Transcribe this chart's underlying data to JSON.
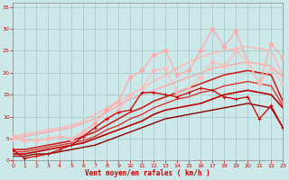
{
  "xlabel": "Vent moyen/en rafales ( km/h )",
  "bg_color": "#cce8e8",
  "grid_color": "#aacccc",
  "xlim": [
    0,
    23
  ],
  "ylim": [
    0,
    36
  ],
  "yticks": [
    0,
    5,
    10,
    15,
    20,
    25,
    30,
    35
  ],
  "xticks": [
    0,
    1,
    2,
    3,
    4,
    5,
    6,
    7,
    8,
    9,
    10,
    11,
    12,
    13,
    14,
    15,
    16,
    17,
    18,
    19,
    20,
    21,
    22,
    23
  ],
  "lines": [
    {
      "x": [
        0,
        1,
        2,
        3,
        4,
        5,
        6,
        7,
        8,
        9,
        10,
        11,
        12,
        13,
        14,
        15,
        16,
        17,
        18,
        19,
        20,
        21,
        22,
        23
      ],
      "y": [
        5.5,
        6.0,
        6.5,
        7.0,
        7.5,
        8.0,
        9.0,
        10.5,
        12.0,
        13.5,
        15.0,
        16.5,
        18.0,
        19.5,
        21.0,
        22.5,
        23.5,
        24.5,
        25.0,
        25.5,
        26.0,
        25.5,
        25.0,
        19.5
      ],
      "color": "#ffbbbb",
      "lw": 1.2,
      "marker": null,
      "ms": 0,
      "zorder": 1
    },
    {
      "x": [
        0,
        1,
        2,
        3,
        4,
        5,
        6,
        7,
        8,
        9,
        10,
        11,
        12,
        13,
        14,
        15,
        16,
        17,
        18,
        19,
        20,
        21,
        22,
        23
      ],
      "y": [
        5.0,
        5.5,
        6.0,
        6.5,
        7.0,
        7.5,
        8.5,
        9.5,
        11.0,
        12.5,
        14.0,
        15.0,
        16.0,
        17.0,
        18.0,
        19.0,
        20.0,
        21.0,
        21.5,
        22.0,
        22.5,
        22.0,
        21.5,
        19.0
      ],
      "color": "#ffaaaa",
      "lw": 1.1,
      "marker": null,
      "ms": 0,
      "zorder": 1
    },
    {
      "x": [
        0,
        1,
        2,
        3,
        4,
        5,
        6,
        7,
        8,
        9,
        10,
        11,
        12,
        13,
        14,
        15,
        16,
        17,
        18,
        19,
        20,
        21,
        22,
        23
      ],
      "y": [
        5.5,
        4.5,
        4.5,
        5.0,
        5.5,
        5.0,
        6.5,
        8.5,
        11.5,
        13.5,
        19.0,
        20.5,
        24.0,
        25.0,
        19.5,
        20.5,
        25.0,
        30.0,
        26.0,
        29.5,
        22.5,
        17.5,
        26.5,
        23.5
      ],
      "color": "#ffaaaa",
      "lw": 0.9,
      "marker": "D",
      "ms": 2.5,
      "zorder": 3
    },
    {
      "x": [
        0,
        1,
        2,
        3,
        4,
        5,
        6,
        7,
        8,
        9,
        10,
        11,
        12,
        13,
        14,
        15,
        16,
        17,
        18,
        19,
        20,
        21,
        22,
        23
      ],
      "y": [
        5.0,
        4.5,
        4.5,
        5.0,
        5.5,
        5.0,
        6.0,
        7.5,
        9.5,
        11.5,
        15.0,
        16.5,
        20.5,
        21.0,
        15.5,
        16.5,
        19.0,
        22.5,
        21.5,
        25.0,
        22.5,
        17.5,
        21.0,
        17.5
      ],
      "color": "#ffbbbb",
      "lw": 0.9,
      "marker": "D",
      "ms": 2.5,
      "zorder": 3
    },
    {
      "x": [
        0,
        1,
        2,
        3,
        4,
        5,
        6,
        7,
        8,
        9,
        10,
        11,
        12,
        13,
        14,
        15,
        16,
        17,
        18,
        19,
        20,
        21,
        22,
        23
      ],
      "y": [
        2.5,
        2.5,
        3.0,
        3.5,
        4.0,
        4.5,
        5.5,
        6.5,
        8.0,
        9.5,
        11.0,
        12.0,
        13.5,
        14.5,
        15.5,
        16.5,
        17.5,
        18.5,
        19.5,
        20.0,
        20.5,
        20.0,
        19.5,
        13.5
      ],
      "color": "#cc2222",
      "lw": 1.2,
      "marker": null,
      "ms": 0,
      "zorder": 2
    },
    {
      "x": [
        0,
        1,
        2,
        3,
        4,
        5,
        6,
        7,
        8,
        9,
        10,
        11,
        12,
        13,
        14,
        15,
        16,
        17,
        18,
        19,
        20,
        21,
        22,
        23
      ],
      "y": [
        2.0,
        2.0,
        2.5,
        3.0,
        3.5,
        4.0,
        4.5,
        5.5,
        7.0,
        8.0,
        9.5,
        10.5,
        12.0,
        13.0,
        14.0,
        14.5,
        15.5,
        16.0,
        17.0,
        17.5,
        18.0,
        17.5,
        17.0,
        12.5
      ],
      "color": "#dd3333",
      "lw": 1.0,
      "marker": null,
      "ms": 0,
      "zorder": 2
    },
    {
      "x": [
        0,
        1,
        2,
        3,
        4,
        5,
        6,
        7,
        8,
        9,
        10,
        11,
        12,
        13,
        14,
        15,
        16,
        17,
        18,
        19,
        20,
        21,
        22,
        23
      ],
      "y": [
        1.5,
        1.5,
        2.0,
        2.5,
        3.0,
        3.5,
        4.0,
        5.0,
        6.0,
        7.0,
        8.0,
        9.0,
        10.5,
        11.5,
        12.0,
        12.5,
        13.0,
        14.0,
        15.0,
        15.5,
        16.0,
        15.5,
        15.0,
        12.0
      ],
      "color": "#bb0000",
      "lw": 1.2,
      "marker": null,
      "ms": 0,
      "zorder": 2
    },
    {
      "x": [
        0,
        1,
        2,
        3,
        4,
        5,
        6,
        7,
        8,
        9,
        10,
        11,
        12,
        13,
        14,
        15,
        16,
        17,
        18,
        19,
        20,
        21,
        22,
        23
      ],
      "y": [
        2.5,
        0.5,
        1.0,
        1.5,
        2.5,
        3.5,
        5.5,
        7.5,
        9.5,
        11.0,
        11.5,
        15.5,
        15.5,
        15.0,
        14.5,
        15.5,
        16.5,
        16.0,
        14.5,
        14.0,
        14.5,
        9.5,
        12.5,
        7.5
      ],
      "color": "#cc0000",
      "lw": 0.9,
      "marker": "+",
      "ms": 3.5,
      "zorder": 4
    },
    {
      "x": [
        0,
        1,
        2,
        3,
        4,
        5,
        6,
        7,
        8,
        9,
        10,
        11,
        12,
        13,
        14,
        15,
        16,
        17,
        18,
        19,
        20,
        21,
        22,
        23
      ],
      "y": [
        1.0,
        1.0,
        1.5,
        1.5,
        2.0,
        2.5,
        3.0,
        3.5,
        4.5,
        5.5,
        6.5,
        7.5,
        8.5,
        9.5,
        10.0,
        10.5,
        11.0,
        11.5,
        12.0,
        12.5,
        13.0,
        12.5,
        12.0,
        7.5
      ],
      "color": "#880000",
      "lw": 1.0,
      "marker": null,
      "ms": 0,
      "zorder": 2
    }
  ]
}
